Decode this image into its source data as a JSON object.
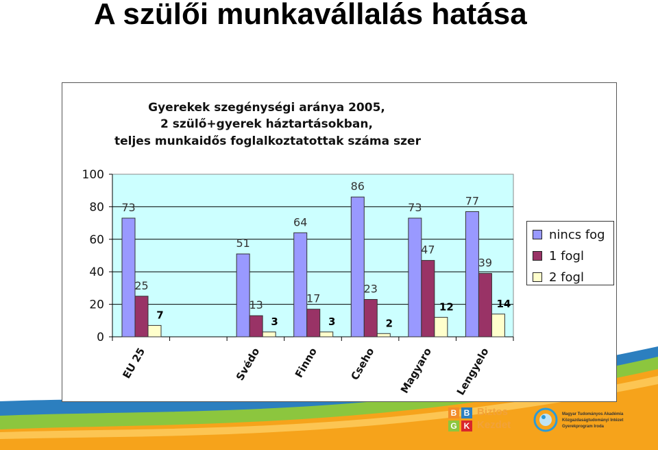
{
  "page": {
    "title": "A szülői munkavállalás hatása"
  },
  "chart_data": {
    "type": "bar",
    "title_lines": [
      "Gyerekek szegénységi aránya  2005,",
      "2 szülő+gyerek háztartásokban,",
      "teljes munkaidős foglalkoztatottak száma szer"
    ],
    "categories": [
      "EU 25",
      "",
      "Svédo",
      "Finno",
      "Cseho",
      "Magyaro",
      "Lengyelo"
    ],
    "series": [
      {
        "name": "nincs fog",
        "values": [
          73,
          null,
          51,
          64,
          86,
          73,
          77
        ],
        "color": "#9999ff"
      },
      {
        "name": "1 fogl",
        "values": [
          25,
          null,
          13,
          17,
          23,
          47,
          39
        ],
        "color": "#993366"
      },
      {
        "name": "2 fogl",
        "values": [
          7,
          null,
          3,
          3,
          2,
          12,
          14
        ],
        "color": "#ffffcc"
      }
    ],
    "data_labels": [
      [
        "73",
        "",
        "51",
        "64",
        "86",
        "73",
        "77"
      ],
      [
        "25",
        "",
        "13",
        "17",
        "23",
        "47",
        "39"
      ],
      [
        "7",
        "",
        "3",
        "3",
        "2",
        "12",
        "14"
      ]
    ],
    "yticks": [
      "0",
      "20",
      "40",
      "60",
      "80",
      "100"
    ],
    "ylim": [
      0,
      100
    ],
    "grid": true,
    "plot_background": "#ccffff",
    "legend": "right"
  },
  "logos": {
    "bk_line1": "Biztos",
    "bk_line2": "Kezdet",
    "bk_letters": [
      "B",
      "B",
      "G",
      "K"
    ],
    "mta_line1": "Magyar Tudományos Akadémia",
    "mta_line2": "Közgazdaságtudományi Intézet",
    "mta_line3": "Gyerekprogram Iroda"
  }
}
